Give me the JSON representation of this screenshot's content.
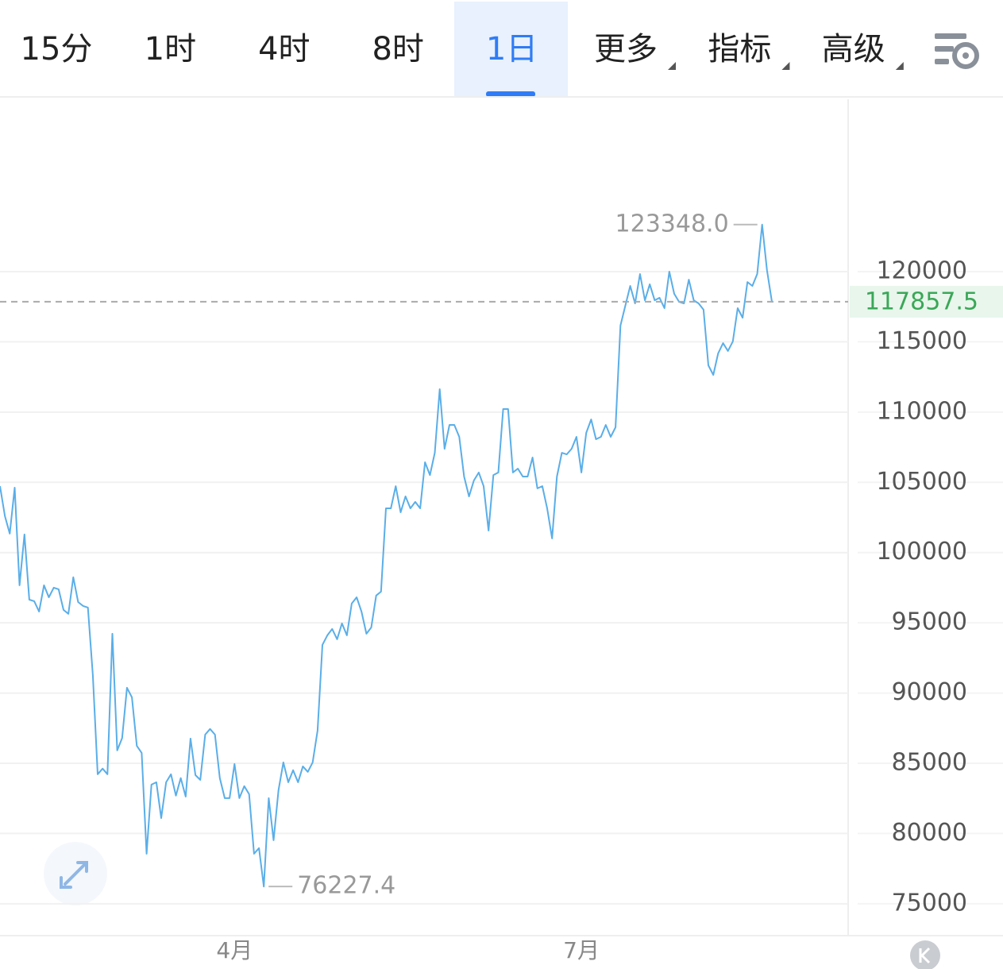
{
  "tabs": [
    {
      "label": "15分"
    },
    {
      "label": "1时"
    },
    {
      "label": "4时"
    },
    {
      "label": "8时"
    },
    {
      "label": "1日",
      "active": true
    },
    {
      "label": "更多",
      "dropdown": true
    },
    {
      "label": "指标",
      "dropdown": true
    },
    {
      "label": "高级",
      "dropdown": true
    }
  ],
  "chart_data": {
    "type": "line",
    "color": "#5aaee8",
    "categories": [
      null,
      null,
      null,
      null,
      null,
      null,
      null,
      null,
      null,
      null,
      null,
      null,
      null,
      null,
      null,
      null,
      null,
      null,
      null,
      null,
      null,
      null,
      null,
      null,
      null,
      null,
      null,
      null,
      null,
      null,
      null,
      null,
      null,
      null,
      null,
      null,
      null,
      null,
      null,
      null,
      null,
      null,
      null,
      null,
      null,
      null,
      null,
      null,
      "4月",
      null,
      null,
      null,
      null,
      null,
      null,
      null,
      null,
      null,
      null,
      null,
      null,
      null,
      null,
      null,
      null,
      null,
      null,
      null,
      null,
      null,
      null,
      null,
      null,
      null,
      null,
      null,
      null,
      null,
      null,
      null,
      null,
      null,
      null,
      null,
      null,
      null,
      null,
      null,
      null,
      null,
      null,
      null,
      null,
      null,
      null,
      null,
      null,
      null,
      null,
      null,
      null,
      null,
      null,
      null,
      null,
      null,
      null,
      null,
      null,
      null,
      null,
      null,
      null,
      null,
      null,
      null,
      null,
      null,
      null,
      "7月",
      null,
      null,
      null,
      null,
      null,
      null,
      null,
      null,
      null,
      null,
      null,
      null,
      null,
      null,
      null,
      null,
      null,
      null,
      null,
      null,
      null,
      null,
      null,
      null,
      null,
      null,
      null,
      null,
      null,
      null,
      null,
      null,
      null,
      null,
      null,
      null,
      null,
      null,
      null
    ],
    "values": [
      104735,
      102590,
      101350,
      104620,
      97670,
      101290,
      96650,
      96540,
      95800,
      97670,
      96820,
      97500,
      97390,
      95920,
      95640,
      98240,
      96480,
      96200,
      96090,
      91280,
      84220,
      84620,
      84220,
      94220,
      85920,
      86800,
      90380,
      89700,
      86240,
      85740,
      78560,
      83480,
      83650,
      81100,
      83650,
      84220,
      82700,
      83950,
      82630,
      86760,
      84160,
      83820,
      87040,
      87440,
      87040,
      83950,
      82520,
      82520,
      84950,
      82520,
      83370,
      82800,
      78560,
      78960,
      76227.4,
      82520,
      79520,
      83090,
      85060,
      83650,
      84510,
      83650,
      84780,
      84390,
      85060,
      87330,
      93430,
      94110,
      94560,
      93830,
      94960,
      94110,
      96370,
      96820,
      95800,
      94220,
      94670,
      96940,
      97220,
      103150,
      103150,
      104730,
      102870,
      104000,
      103150,
      103610,
      103150,
      106430,
      105520,
      107100,
      111630,
      107390,
      109090,
      109090,
      108240,
      105410,
      104000,
      105130,
      105700,
      104730,
      101570,
      105520,
      105700,
      110220,
      110220,
      105700,
      105980,
      105410,
      105410,
      106770,
      104570,
      104730,
      103150,
      101010,
      105410,
      107100,
      106990,
      107390,
      108240,
      105700,
      108520,
      109480,
      108070,
      108240,
      109090,
      108240,
      108920,
      116160,
      117570,
      118980,
      117740,
      119830,
      117960,
      119100,
      117960,
      118140,
      117400,
      120000,
      118420,
      117850,
      117740,
      119430,
      117960,
      117740,
      117290,
      113330,
      112650,
      114180,
      114910,
      114350,
      115030,
      117400,
      116720,
      119260,
      118980,
      119830,
      123348.0,
      120110,
      117857.5
    ],
    "max_label": "123348.0",
    "min_label": "76227.4",
    "last_label": "117857.5",
    "ylim": [
      72900,
      132270
    ],
    "yticks": [
      75000,
      80000,
      85000,
      90000,
      95000,
      100000,
      105000,
      110000,
      115000,
      120000
    ],
    "grid": true
  }
}
